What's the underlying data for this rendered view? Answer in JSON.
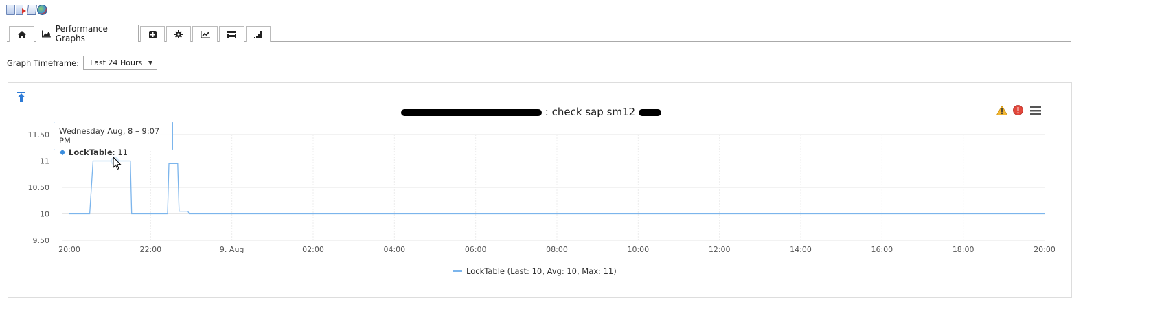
{
  "toolbar_icons": [
    "page-icon",
    "page-exit-icon",
    "document-icon",
    "globe-icon"
  ],
  "tabs": [
    {
      "name": "home",
      "icon": "home-icon",
      "label": ""
    },
    {
      "name": "performance-graphs",
      "icon": "area-chart-icon",
      "label": "Performance Graphs",
      "active": true
    },
    {
      "name": "add",
      "icon": "plus-square-icon",
      "label": ""
    },
    {
      "name": "settings",
      "icon": "gear-icon",
      "label": ""
    },
    {
      "name": "line-chart",
      "icon": "line-chart-icon",
      "label": ""
    },
    {
      "name": "list",
      "icon": "list-icon",
      "label": ""
    },
    {
      "name": "signal",
      "icon": "signal-bars-icon",
      "label": ""
    }
  ],
  "timeframe": {
    "label": "Graph Timeframe:",
    "selected": "Last 24 Hours"
  },
  "chart_title_suffix": ": check sap sm12",
  "tooltip": {
    "date": "Wednesday Aug, 8 – 9:07 PM",
    "series": "LockTable",
    "value": ": 11"
  },
  "legend": {
    "text": "LockTable (Last: 10, Avg: 10, Max: 11)"
  },
  "colors": {
    "series": "#7cb5ec",
    "grid": "#e6e6e6",
    "tooltip_border": "#7cb5ec"
  },
  "chart_data": {
    "type": "line",
    "series": [
      {
        "name": "LockTable",
        "x": [
          "20:00",
          "20:30",
          "20:35",
          "21:30",
          "21:32",
          "22:25",
          "22:27",
          "22:40",
          "22:42",
          "22:55",
          "22:57",
          "23:00",
          "20:00+1"
        ],
        "values": [
          10,
          10,
          11,
          11,
          10,
          10,
          10.95,
          10.95,
          10.05,
          10.05,
          10,
          10,
          10
        ]
      }
    ],
    "x_ticks": [
      "20:00",
      "22:00",
      "9. Aug",
      "02:00",
      "04:00",
      "06:00",
      "08:00",
      "10:00",
      "12:00",
      "14:00",
      "16:00",
      "18:00",
      "20:00"
    ],
    "y_ticks": [
      "9.50",
      "10",
      "10.50",
      "11",
      "11.50"
    ],
    "ylim": [
      9.5,
      11.5
    ],
    "grid": true,
    "legend_position": "bottom-center"
  }
}
